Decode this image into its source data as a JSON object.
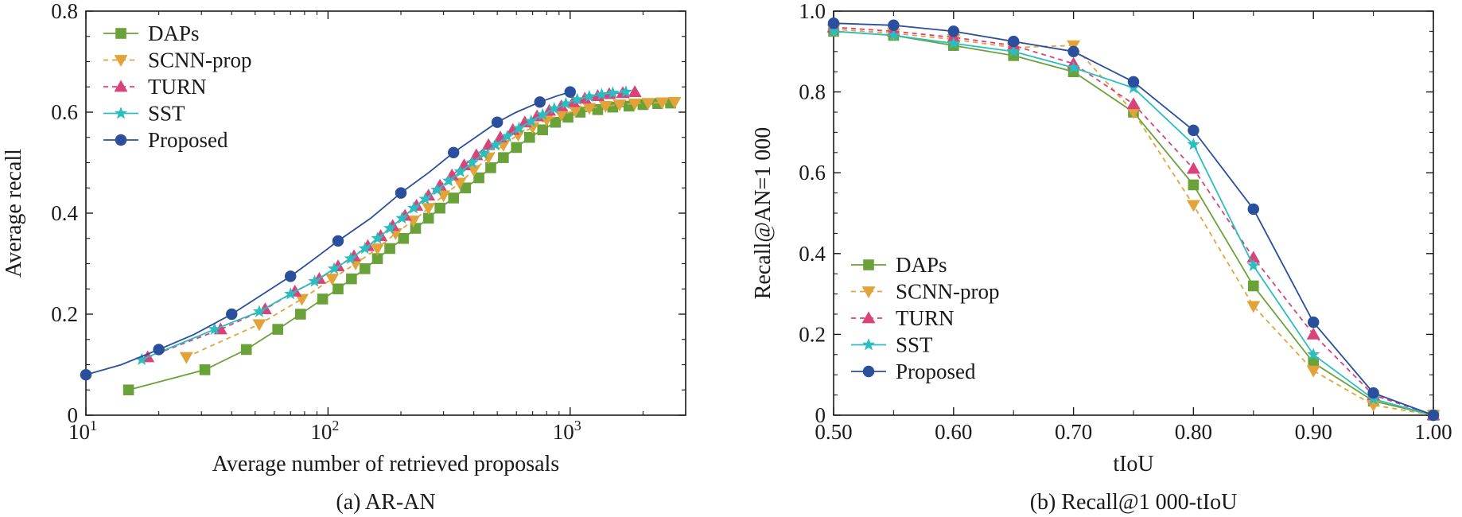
{
  "colors": {
    "daps": "#6aa23a",
    "scnn": "#e2a43a",
    "turn": "#d9437a",
    "sst": "#2bbec1",
    "proposed": "#2a4f9c",
    "axis": "#1a1a1a"
  },
  "chart_data": [
    {
      "type": "line",
      "title": "(a) AR-AN",
      "xlabel": "Average number of retrieved proposals",
      "ylabel": "Average recall",
      "xscale": "log",
      "xlim": [
        10,
        3000
      ],
      "ylim": [
        0,
        0.8
      ],
      "xticks": [
        {
          "value": 10,
          "base": "10",
          "exp": "1"
        },
        {
          "value": 100,
          "base": "10",
          "exp": "2"
        },
        {
          "value": 1000,
          "base": "10",
          "exp": "3"
        }
      ],
      "yticks": [
        {
          "value": 0,
          "label": "0"
        },
        {
          "value": 0.2,
          "label": "0.2"
        },
        {
          "value": 0.4,
          "label": "0.4"
        },
        {
          "value": 0.6,
          "label": "0.6"
        },
        {
          "value": 0.8,
          "label": "0.8"
        }
      ],
      "legend_position": "top-left",
      "series": [
        {
          "name": "DAPs",
          "key": "daps",
          "marker": "square",
          "dash": "solid",
          "x": [
            15,
            31,
            46,
            62,
            77,
            95,
            110,
            125,
            142,
            160,
            180,
            205,
            230,
            260,
            290,
            330,
            370,
            420,
            470,
            530,
            600,
            680,
            770,
            870,
            980,
            1100,
            1300,
            1500,
            1750,
            2000,
            2300,
            2600
          ],
          "y": [
            0.05,
            0.09,
            0.13,
            0.17,
            0.2,
            0.23,
            0.25,
            0.27,
            0.29,
            0.31,
            0.33,
            0.35,
            0.37,
            0.39,
            0.41,
            0.43,
            0.45,
            0.47,
            0.49,
            0.51,
            0.53,
            0.55,
            0.565,
            0.58,
            0.59,
            0.6,
            0.605,
            0.61,
            0.612,
            0.615,
            0.617,
            0.618
          ]
        },
        {
          "name": "SCNN-prop",
          "key": "scnn",
          "marker": "triangle-down",
          "dash": "dashed",
          "x": [
            26,
            52,
            78,
            104,
            130,
            160,
            190,
            225,
            260,
            300,
            350,
            400,
            460,
            530,
            610,
            700,
            800,
            920,
            1050,
            1200,
            1400,
            1600,
            1850,
            2100,
            2400,
            2700
          ],
          "y": [
            0.115,
            0.18,
            0.23,
            0.27,
            0.3,
            0.33,
            0.36,
            0.385,
            0.41,
            0.435,
            0.46,
            0.485,
            0.51,
            0.535,
            0.555,
            0.57,
            0.585,
            0.595,
            0.603,
            0.608,
            0.612,
            0.615,
            0.617,
            0.618,
            0.619,
            0.62
          ]
        },
        {
          "name": "TURN",
          "key": "turn",
          "marker": "triangle-up",
          "dash": "dashed",
          "x": [
            18,
            36,
            55,
            73,
            92,
            110,
            128,
            146,
            165,
            185,
            208,
            232,
            260,
            290,
            325,
            365,
            410,
            460,
            515,
            580,
            650,
            730,
            820,
            920,
            1030,
            1150,
            1300,
            1450,
            1650,
            1850
          ],
          "y": [
            0.115,
            0.17,
            0.21,
            0.245,
            0.27,
            0.295,
            0.315,
            0.335,
            0.355,
            0.375,
            0.395,
            0.415,
            0.435,
            0.455,
            0.475,
            0.495,
            0.515,
            0.535,
            0.55,
            0.565,
            0.58,
            0.592,
            0.603,
            0.612,
            0.62,
            0.627,
            0.632,
            0.636,
            0.638,
            0.64
          ]
        },
        {
          "name": "SST",
          "key": "sst",
          "marker": "star",
          "dash": "solid",
          "x": [
            17,
            34,
            52,
            70,
            88,
            106,
            124,
            142,
            160,
            180,
            202,
            226,
            252,
            282,
            315,
            352,
            394,
            440,
            492,
            550,
            615,
            690,
            770,
            860,
            960,
            1070,
            1200,
            1350,
            1500,
            1700
          ],
          "y": [
            0.11,
            0.17,
            0.205,
            0.24,
            0.265,
            0.29,
            0.31,
            0.33,
            0.35,
            0.37,
            0.39,
            0.41,
            0.428,
            0.446,
            0.464,
            0.482,
            0.5,
            0.518,
            0.535,
            0.552,
            0.568,
            0.582,
            0.595,
            0.607,
            0.617,
            0.625,
            0.631,
            0.635,
            0.638,
            0.64
          ]
        },
        {
          "name": "Proposed",
          "key": "proposed",
          "marker": "circle",
          "dash": "solid",
          "markevery": 2,
          "x": [
            10,
            14,
            20,
            28,
            40,
            52,
            70,
            88,
            110,
            150,
            200,
            260,
            330,
            420,
            500,
            600,
            750,
            880,
            1000
          ],
          "y": [
            0.08,
            0.1,
            0.13,
            0.16,
            0.2,
            0.235,
            0.275,
            0.31,
            0.345,
            0.39,
            0.44,
            0.48,
            0.52,
            0.555,
            0.58,
            0.6,
            0.62,
            0.632,
            0.64
          ]
        }
      ]
    },
    {
      "type": "line",
      "title": "(b) Recall@1 000-tIoU",
      "xlabel": "tIoU",
      "ylabel": "Recall@AN=1 000",
      "xlim": [
        0.5,
        1.0
      ],
      "ylim": [
        0,
        1.0
      ],
      "xticks": [
        {
          "value": 0.5,
          "label": "0.50"
        },
        {
          "value": 0.6,
          "label": "0.60"
        },
        {
          "value": 0.7,
          "label": "0.70"
        },
        {
          "value": 0.8,
          "label": "0.80"
        },
        {
          "value": 0.9,
          "label": "0.90"
        },
        {
          "value": 1.0,
          "label": "1.00"
        }
      ],
      "yticks": [
        {
          "value": 0,
          "label": "0"
        },
        {
          "value": 0.2,
          "label": "0.2"
        },
        {
          "value": 0.4,
          "label": "0.4"
        },
        {
          "value": 0.6,
          "label": "0.6"
        },
        {
          "value": 0.8,
          "label": "0.8"
        },
        {
          "value": 1.0,
          "label": "1.0"
        }
      ],
      "legend_position": "bottom-left",
      "series": [
        {
          "name": "DAPs",
          "key": "daps",
          "marker": "square",
          "dash": "solid",
          "x": [
            0.5,
            0.55,
            0.6,
            0.65,
            0.7,
            0.75,
            0.8,
            0.85,
            0.9,
            0.95,
            1.0
          ],
          "y": [
            0.95,
            0.94,
            0.915,
            0.89,
            0.85,
            0.75,
            0.57,
            0.32,
            0.13,
            0.035,
            0.0
          ]
        },
        {
          "name": "SCNN-prop",
          "key": "scnn",
          "marker": "triangle-down",
          "dash": "dashed",
          "x": [
            0.5,
            0.55,
            0.6,
            0.65,
            0.7,
            0.75,
            0.8,
            0.85,
            0.9,
            0.95,
            1.0
          ],
          "y": [
            0.955,
            0.945,
            0.93,
            0.91,
            0.915,
            0.75,
            0.52,
            0.27,
            0.11,
            0.025,
            0.0
          ]
        },
        {
          "name": "TURN",
          "key": "turn",
          "marker": "triangle-up",
          "dash": "dashed",
          "x": [
            0.5,
            0.55,
            0.6,
            0.65,
            0.7,
            0.75,
            0.8,
            0.85,
            0.9,
            0.95,
            1.0
          ],
          "y": [
            0.96,
            0.95,
            0.935,
            0.915,
            0.87,
            0.77,
            0.61,
            0.39,
            0.2,
            0.05,
            0.0
          ]
        },
        {
          "name": "SST",
          "key": "sst",
          "marker": "star",
          "dash": "solid",
          "x": [
            0.5,
            0.55,
            0.6,
            0.65,
            0.7,
            0.75,
            0.8,
            0.85,
            0.9,
            0.95,
            1.0
          ],
          "y": [
            0.95,
            0.94,
            0.92,
            0.9,
            0.86,
            0.81,
            0.67,
            0.37,
            0.15,
            0.04,
            0.0
          ]
        },
        {
          "name": "Proposed",
          "key": "proposed",
          "marker": "circle",
          "dash": "solid",
          "x": [
            0.5,
            0.55,
            0.6,
            0.65,
            0.7,
            0.75,
            0.8,
            0.85,
            0.9,
            0.95,
            1.0
          ],
          "y": [
            0.97,
            0.965,
            0.95,
            0.925,
            0.9,
            0.825,
            0.705,
            0.51,
            0.23,
            0.055,
            0.0
          ]
        }
      ]
    }
  ]
}
